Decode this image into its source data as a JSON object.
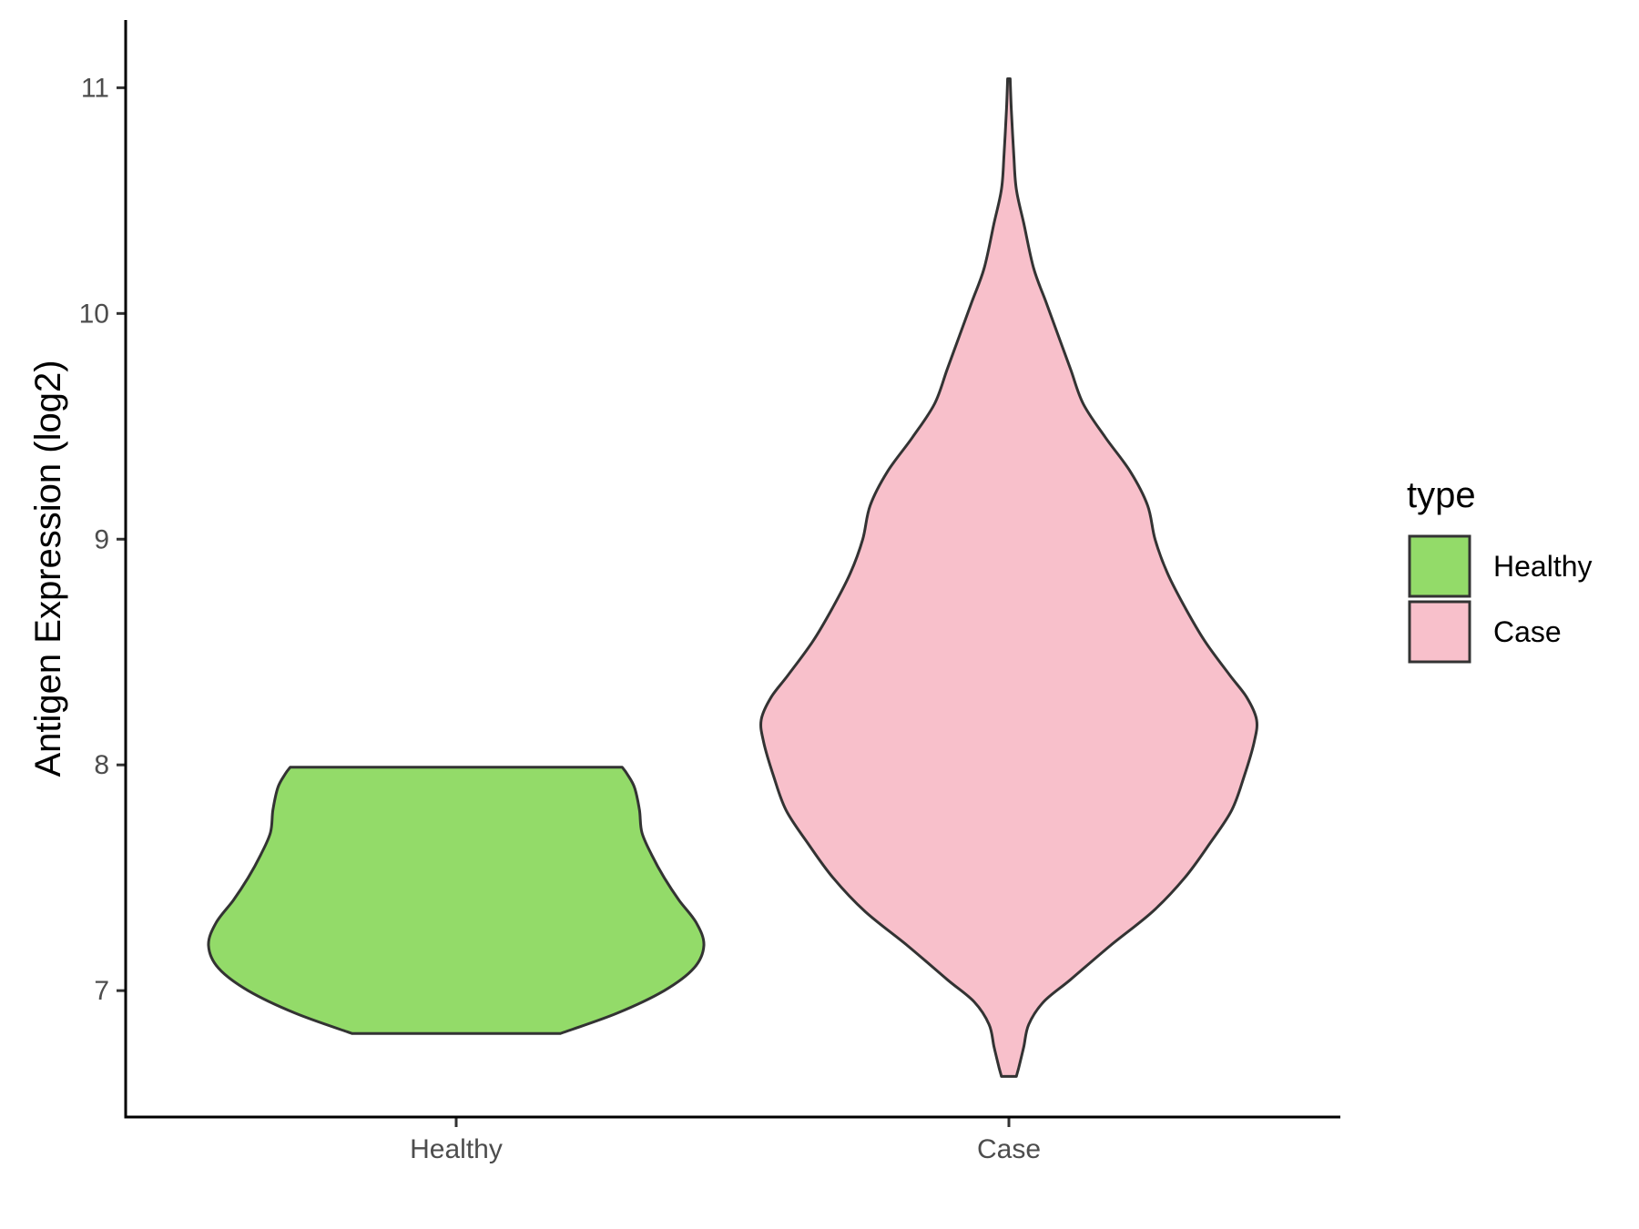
{
  "chart_data": {
    "type": "violin",
    "title": "",
    "xlabel": "",
    "ylabel": "Antigen Expression (log2)",
    "ylim": [
      6.44,
      11.3
    ],
    "yticks": [
      7,
      8,
      9,
      10,
      11
    ],
    "categories": [
      "Healthy",
      "Case"
    ],
    "series": [
      {
        "name": "Healthy",
        "color": "#93db69",
        "min": 6.81,
        "max": 7.99,
        "profile": [
          [
            6.81,
            0.42
          ],
          [
            6.9,
            0.65
          ],
          [
            7.0,
            0.84
          ],
          [
            7.1,
            0.96
          ],
          [
            7.2,
            1.0
          ],
          [
            7.3,
            0.97
          ],
          [
            7.4,
            0.9
          ],
          [
            7.5,
            0.84
          ],
          [
            7.6,
            0.79
          ],
          [
            7.7,
            0.75
          ],
          [
            7.8,
            0.74
          ],
          [
            7.9,
            0.72
          ],
          [
            7.96,
            0.69
          ],
          [
            7.99,
            0.67
          ]
        ]
      },
      {
        "name": "Case",
        "color": "#f8c0cb",
        "min": 6.62,
        "max": 11.04,
        "profile": [
          [
            6.62,
            0.03
          ],
          [
            6.66,
            0.04
          ],
          [
            6.75,
            0.06
          ],
          [
            6.85,
            0.08
          ],
          [
            6.95,
            0.14
          ],
          [
            7.05,
            0.25
          ],
          [
            7.2,
            0.41
          ],
          [
            7.35,
            0.58
          ],
          [
            7.5,
            0.71
          ],
          [
            7.65,
            0.81
          ],
          [
            7.8,
            0.9
          ],
          [
            7.95,
            0.95
          ],
          [
            8.1,
            0.99
          ],
          [
            8.2,
            1.0
          ],
          [
            8.3,
            0.96
          ],
          [
            8.4,
            0.89
          ],
          [
            8.55,
            0.79
          ],
          [
            8.7,
            0.71
          ],
          [
            8.85,
            0.64
          ],
          [
            9.0,
            0.59
          ],
          [
            9.15,
            0.56
          ],
          [
            9.3,
            0.49
          ],
          [
            9.45,
            0.39
          ],
          [
            9.6,
            0.3
          ],
          [
            9.75,
            0.25
          ],
          [
            9.9,
            0.2
          ],
          [
            10.05,
            0.15
          ],
          [
            10.2,
            0.1
          ],
          [
            10.4,
            0.06
          ],
          [
            10.55,
            0.03
          ],
          [
            10.7,
            0.02
          ],
          [
            10.9,
            0.01
          ],
          [
            11.04,
            0.005
          ]
        ]
      }
    ],
    "legend": {
      "title": "type",
      "position": "right",
      "entries": [
        "Healthy",
        "Case"
      ]
    }
  }
}
